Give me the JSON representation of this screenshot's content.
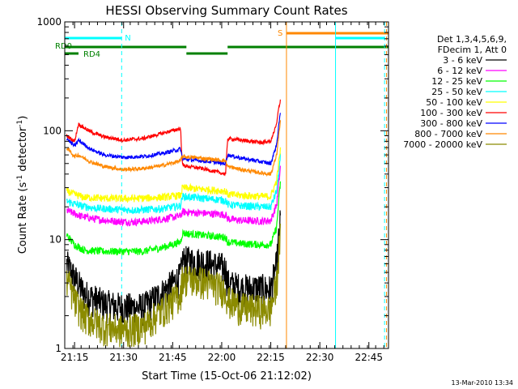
{
  "chart_data": {
    "type": "line",
    "title": "HESSI Observing Summary Count Rates",
    "xlabel": "Start Time (15-Oct-06 21:12:02)",
    "ylabel_main": "Count Rate (s",
    "ylabel_sup1": "-1",
    "ylabel_mid": " detector",
    "ylabel_sup2": "-1",
    "ylabel_end": ")",
    "yscale": "log",
    "ylim": [
      1,
      1000
    ],
    "xlim": [
      21.2,
      22.85
    ],
    "x_ticks": [
      {
        "x": 21.25,
        "label": "21:15"
      },
      {
        "x": 21.5,
        "label": "21:30"
      },
      {
        "x": 21.75,
        "label": "21:45"
      },
      {
        "x": 22.0,
        "label": "22:00"
      },
      {
        "x": 22.25,
        "label": "22:15"
      },
      {
        "x": 22.5,
        "label": "22:30"
      },
      {
        "x": 22.75,
        "label": "22:45"
      }
    ],
    "y_ticks": [
      {
        "v": 1,
        "label": "1"
      },
      {
        "v": 10,
        "label": "10"
      },
      {
        "v": 100,
        "label": "100"
      },
      {
        "v": 1000,
        "label": "1000"
      }
    ],
    "legend_title_1": "Det 1,3,4,5,6,9,",
    "legend_title_2": "FDecim 1, Att 0",
    "series": [
      {
        "name": "3 - 6 keV",
        "color": "#000000",
        "pts": [
          [
            21.21,
            6
          ],
          [
            21.25,
            4.5
          ],
          [
            21.3,
            3.2
          ],
          [
            21.4,
            2.6
          ],
          [
            21.5,
            2.4
          ],
          [
            21.6,
            2.4
          ],
          [
            21.7,
            3.3
          ],
          [
            21.79,
            4.6
          ],
          [
            21.8,
            6.5
          ],
          [
            21.9,
            6.3
          ],
          [
            22.02,
            5.5
          ],
          [
            22.03,
            4
          ],
          [
            22.1,
            3.6
          ],
          [
            22.2,
            3.6
          ],
          [
            22.25,
            3.5
          ],
          [
            22.28,
            6
          ],
          [
            22.29,
            10
          ],
          [
            22.3,
            16
          ]
        ]
      },
      {
        "name": "6 - 12 keV",
        "color": "#ff00ff",
        "pts": [
          [
            21.21,
            18.5
          ],
          [
            21.28,
            16.5
          ],
          [
            21.35,
            15.5
          ],
          [
            21.45,
            14.8
          ],
          [
            21.55,
            14.5
          ],
          [
            21.65,
            15
          ],
          [
            21.7,
            15.5
          ],
          [
            21.79,
            16.5
          ],
          [
            21.8,
            18
          ],
          [
            21.9,
            17.5
          ],
          [
            22.02,
            17
          ],
          [
            22.03,
            15.5
          ],
          [
            22.1,
            15
          ],
          [
            22.2,
            14.8
          ],
          [
            22.25,
            15
          ],
          [
            22.28,
            21
          ],
          [
            22.29,
            32
          ],
          [
            22.3,
            48
          ]
        ]
      },
      {
        "name": "12 - 25 keV",
        "color": "#00ff00",
        "pts": [
          [
            21.21,
            11
          ],
          [
            21.25,
            9
          ],
          [
            21.3,
            8
          ],
          [
            21.4,
            7.8
          ],
          [
            21.5,
            7.8
          ],
          [
            21.6,
            7.8
          ],
          [
            21.7,
            8.5
          ],
          [
            21.79,
            9.5
          ],
          [
            21.8,
            11.5
          ],
          [
            21.9,
            11
          ],
          [
            22.02,
            10.5
          ],
          [
            22.03,
            9.5
          ],
          [
            22.1,
            9.2
          ],
          [
            22.2,
            9
          ],
          [
            22.25,
            9
          ],
          [
            22.28,
            13
          ],
          [
            22.29,
            22
          ],
          [
            22.3,
            35
          ]
        ]
      },
      {
        "name": "25 - 50 keV",
        "color": "#00ffff",
        "pts": [
          [
            21.21,
            22.5
          ],
          [
            21.28,
            20.5
          ],
          [
            21.35,
            19.5
          ],
          [
            21.45,
            19
          ],
          [
            21.55,
            18.7
          ],
          [
            21.65,
            19
          ],
          [
            21.7,
            19.3
          ],
          [
            21.79,
            20.5
          ],
          [
            21.8,
            25
          ],
          [
            21.9,
            24
          ],
          [
            22.02,
            23
          ],
          [
            22.03,
            21
          ],
          [
            22.1,
            20.5
          ],
          [
            22.2,
            20
          ],
          [
            22.25,
            20
          ],
          [
            22.28,
            28
          ],
          [
            22.29,
            40
          ],
          [
            22.3,
            60
          ]
        ]
      },
      {
        "name": "50 - 100 keV",
        "color": "#ffff00",
        "pts": [
          [
            21.21,
            28
          ],
          [
            21.25,
            26
          ],
          [
            21.3,
            24.5
          ],
          [
            21.4,
            24
          ],
          [
            21.5,
            23.8
          ],
          [
            21.6,
            24
          ],
          [
            21.7,
            24.5
          ],
          [
            21.79,
            25.5
          ],
          [
            21.8,
            30
          ],
          [
            21.9,
            29
          ],
          [
            22.02,
            28
          ],
          [
            22.03,
            26
          ],
          [
            22.1,
            25.5
          ],
          [
            22.2,
            25
          ],
          [
            22.25,
            25
          ],
          [
            22.28,
            35
          ],
          [
            22.29,
            50
          ],
          [
            22.3,
            70
          ]
        ]
      },
      {
        "name": "100 - 300 keV",
        "color": "#ff0000",
        "pts": [
          [
            21.21,
            90
          ],
          [
            21.25,
            80
          ],
          [
            21.27,
            115
          ],
          [
            21.33,
            98
          ],
          [
            21.4,
            88
          ],
          [
            21.5,
            82
          ],
          [
            21.6,
            85
          ],
          [
            21.7,
            95
          ],
          [
            21.79,
            105
          ],
          [
            21.8,
            48
          ],
          [
            21.9,
            45
          ],
          [
            22.02,
            40
          ],
          [
            22.03,
            85
          ],
          [
            22.1,
            82
          ],
          [
            22.2,
            78
          ],
          [
            22.25,
            80
          ],
          [
            22.28,
            115
          ],
          [
            22.29,
            160
          ],
          [
            22.3,
            195
          ]
        ]
      },
      {
        "name": "300 - 800 keV",
        "color": "#0000ff",
        "pts": [
          [
            21.21,
            85
          ],
          [
            21.25,
            72
          ],
          [
            21.27,
            82
          ],
          [
            21.33,
            68
          ],
          [
            21.4,
            60
          ],
          [
            21.5,
            57
          ],
          [
            21.6,
            58
          ],
          [
            21.7,
            62
          ],
          [
            21.79,
            68
          ],
          [
            21.8,
            55
          ],
          [
            21.9,
            53
          ],
          [
            22.02,
            50
          ],
          [
            22.03,
            60
          ],
          [
            22.1,
            56
          ],
          [
            22.2,
            52
          ],
          [
            22.25,
            50
          ],
          [
            22.28,
            75
          ],
          [
            22.29,
            110
          ],
          [
            22.3,
            150
          ]
        ]
      },
      {
        "name": "800 - 7000 keV",
        "color": "#ff8800",
        "pts": [
          [
            21.21,
            70
          ],
          [
            21.25,
            58
          ],
          [
            21.27,
            60
          ],
          [
            21.33,
            52
          ],
          [
            21.4,
            47
          ],
          [
            21.5,
            44
          ],
          [
            21.6,
            45
          ],
          [
            21.7,
            48
          ],
          [
            21.79,
            53
          ],
          [
            21.8,
            58
          ],
          [
            21.9,
            56
          ],
          [
            22.02,
            53
          ],
          [
            22.03,
            47
          ],
          [
            22.1,
            44
          ],
          [
            22.2,
            41
          ],
          [
            22.25,
            40
          ],
          [
            22.28,
            60
          ],
          [
            22.29,
            90
          ],
          [
            22.3,
            125
          ]
        ]
      },
      {
        "name": "7000 - 20000 keV",
        "color": "#8b8b00",
        "pts": [
          [
            21.21,
            4.5
          ],
          [
            21.25,
            2.8
          ],
          [
            21.3,
            2
          ],
          [
            21.4,
            1.6
          ],
          [
            21.5,
            1.5
          ],
          [
            21.6,
            1.6
          ],
          [
            21.7,
            2.3
          ],
          [
            21.79,
            3.2
          ],
          [
            21.8,
            4.5
          ],
          [
            21.9,
            4.2
          ],
          [
            22.02,
            3.5
          ],
          [
            22.03,
            2.8
          ],
          [
            22.1,
            2.4
          ],
          [
            22.2,
            2.3
          ],
          [
            22.25,
            2.3
          ],
          [
            22.28,
            4
          ],
          [
            22.29,
            7
          ],
          [
            22.3,
            11
          ]
        ]
      }
    ],
    "flags": [
      {
        "label": "RD0",
        "color": "#008000",
        "level": "upper",
        "segments": [
          [
            21.2,
            21.82
          ],
          [
            22.03,
            22.85
          ]
        ]
      },
      {
        "label": "RD0",
        "color": "#008000",
        "level": "mid",
        "segments": [
          [
            21.82,
            22.03
          ]
        ]
      },
      {
        "label": "RD4",
        "color": "#008000",
        "level": "lower",
        "segments": [
          [
            21.2,
            21.27
          ]
        ]
      },
      {
        "label": "N",
        "color": "#00ffff",
        "level": "night",
        "segments": [
          [
            21.2,
            21.49
          ],
          [
            22.58,
            22.83
          ]
        ]
      },
      {
        "label": "S",
        "color": "#ff8800",
        "level": "saa",
        "segments": [
          [
            22.33,
            22.85
          ]
        ]
      }
    ],
    "vlines": [
      {
        "x": 21.2,
        "color": "#00ffff",
        "dashed": false
      },
      {
        "x": 21.49,
        "color": "#00ffff",
        "dashed": true
      },
      {
        "x": 22.33,
        "color": "#ff8800",
        "dashed": false
      },
      {
        "x": 22.58,
        "color": "#00ffff",
        "dashed": false
      },
      {
        "x": 22.83,
        "color": "#00ffff",
        "dashed": true
      },
      {
        "x": 22.84,
        "color": "#ff8800",
        "dashed": true
      }
    ]
  },
  "footer_date": "13-Mar-2010 13:34"
}
